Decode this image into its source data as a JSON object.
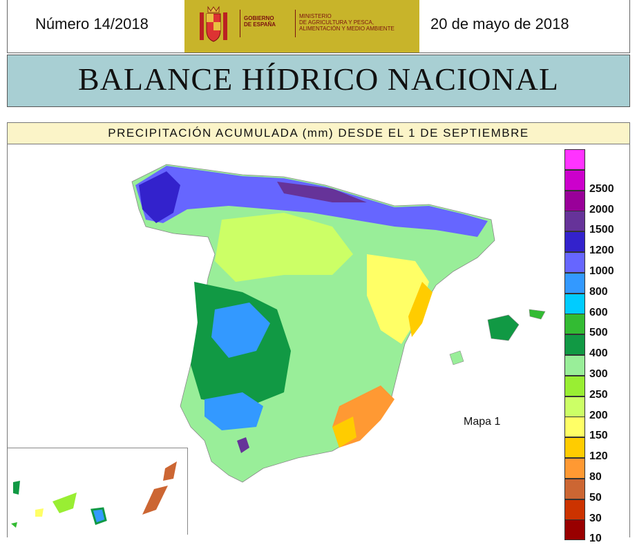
{
  "header": {
    "issue": "Número 14/2018",
    "date": "20 de mayo de 2018",
    "logo_gov": "GOBIERNO\nDE ESPAÑA",
    "logo_ministry": "MINISTERIO\nDE AGRICULTURA Y PESCA,\nALIMENTACIÓN Y MEDIO AMBIENTE"
  },
  "title": "BALANCE HÍDRICO NACIONAL",
  "subtitle": "PRECIPITACIÓN ACUMULADA (mm) DESDE EL 1 DE SEPTIEMBRE",
  "map": {
    "label": "Mapa 1",
    "legend": [
      {
        "label": "",
        "color": "#ff33ff"
      },
      {
        "label": "2500",
        "color": "#cc00cc"
      },
      {
        "label": "2000",
        "color": "#990099"
      },
      {
        "label": "1500",
        "color": "#663399"
      },
      {
        "label": "1200",
        "color": "#3322cc"
      },
      {
        "label": "1000",
        "color": "#6666ff"
      },
      {
        "label": "800",
        "color": "#3399ff"
      },
      {
        "label": "600",
        "color": "#00ccff"
      },
      {
        "label": "500",
        "color": "#33bb33"
      },
      {
        "label": "400",
        "color": "#119944"
      },
      {
        "label": "300",
        "color": "#99ee99"
      },
      {
        "label": "250",
        "color": "#99ee33"
      },
      {
        "label": "200",
        "color": "#ccff66"
      },
      {
        "label": "150",
        "color": "#ffff66"
      },
      {
        "label": "120",
        "color": "#ffcc00"
      },
      {
        "label": "80",
        "color": "#ff9933"
      },
      {
        "label": "50",
        "color": "#cc6633"
      },
      {
        "label": "30",
        "color": "#cc3300"
      },
      {
        "label": "10",
        "color": "#990000"
      }
    ]
  }
}
